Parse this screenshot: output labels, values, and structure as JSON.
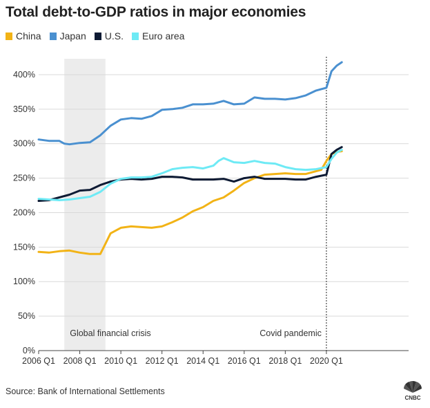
{
  "title": "Total debt-to-GDP ratios in major economies",
  "source": "Source: Bank of International Settlements",
  "logo_text": "CNBC",
  "chart_data": {
    "type": "line",
    "title": "Total debt-to-GDP ratios in major economies",
    "xlabel": "",
    "ylabel": "",
    "xlim": [
      2006.0,
      2024.0
    ],
    "ylim": [
      0,
      420
    ],
    "y_ticks": [
      0,
      50,
      100,
      150,
      200,
      250,
      300,
      350,
      400
    ],
    "y_tick_labels": [
      "0%",
      "50%",
      "100%",
      "150%",
      "200%",
      "250%",
      "300%",
      "350%",
      "400%"
    ],
    "x_ticks": [
      2006,
      2008,
      2010,
      2012,
      2014,
      2016,
      2018,
      2020
    ],
    "x_tick_labels": [
      "2006 Q1",
      "2008 Q1",
      "2010 Q1",
      "2012 Q1",
      "2014 Q1",
      "2016 Q1",
      "2018 Q1",
      "2020 Q1"
    ],
    "grid": true,
    "legend_position": "top-left",
    "annotations": [
      {
        "type": "shaded",
        "label": "Global financial crisis",
        "x_start": 2007.25,
        "x_end": 2009.25
      },
      {
        "type": "vline",
        "label": "Covid pandemic",
        "x": 2020.0
      }
    ],
    "series": [
      {
        "name": "China",
        "color": "#f2b316",
        "x": [
          2006.0,
          2006.5,
          2007.0,
          2007.5,
          2008.0,
          2008.5,
          2009.0,
          2009.25,
          2009.5,
          2010.0,
          2010.5,
          2011.0,
          2011.5,
          2012.0,
          2012.5,
          2013.0,
          2013.5,
          2014.0,
          2014.5,
          2015.0,
          2015.5,
          2016.0,
          2016.5,
          2017.0,
          2017.5,
          2018.0,
          2018.5,
          2019.0,
          2019.5,
          2019.75,
          2020.0,
          2020.25,
          2020.5,
          2020.75
        ],
        "y": [
          143,
          142,
          144,
          145,
          142,
          140,
          140,
          155,
          170,
          178,
          180,
          179,
          178,
          180,
          186,
          193,
          202,
          208,
          217,
          222,
          232,
          243,
          250,
          255,
          256,
          257,
          256,
          256,
          260,
          262,
          275,
          285,
          288,
          289
        ]
      },
      {
        "name": "Japan",
        "color": "#4a90d0",
        "x": [
          2006.0,
          2006.5,
          2007.0,
          2007.25,
          2007.5,
          2008.0,
          2008.5,
          2009.0,
          2009.5,
          2010.0,
          2010.5,
          2011.0,
          2011.5,
          2012.0,
          2012.5,
          2013.0,
          2013.5,
          2014.0,
          2014.5,
          2015.0,
          2015.5,
          2016.0,
          2016.5,
          2017.0,
          2017.5,
          2018.0,
          2018.5,
          2019.0,
          2019.5,
          2020.0,
          2020.25,
          2020.5,
          2020.75
        ],
        "y": [
          306,
          304,
          304,
          300,
          299,
          301,
          302,
          312,
          326,
          335,
          337,
          336,
          340,
          349,
          350,
          352,
          357,
          357,
          358,
          362,
          357,
          358,
          367,
          365,
          365,
          364,
          366,
          370,
          377,
          381,
          405,
          413,
          418
        ]
      },
      {
        "name": "U.S.",
        "color": "#0d1a33",
        "x": [
          2006.0,
          2006.5,
          2007.0,
          2007.5,
          2008.0,
          2008.5,
          2009.0,
          2009.5,
          2010.0,
          2010.5,
          2011.0,
          2011.5,
          2012.0,
          2012.5,
          2013.0,
          2013.5,
          2014.0,
          2014.5,
          2015.0,
          2015.5,
          2016.0,
          2016.5,
          2017.0,
          2017.5,
          2018.0,
          2018.5,
          2019.0,
          2019.5,
          2020.0,
          2020.25,
          2020.5,
          2020.75
        ],
        "y": [
          217,
          218,
          222,
          226,
          232,
          233,
          240,
          245,
          248,
          249,
          248,
          249,
          252,
          252,
          251,
          248,
          248,
          248,
          249,
          245,
          250,
          252,
          249,
          249,
          249,
          248,
          248,
          252,
          255,
          285,
          291,
          295
        ]
      },
      {
        "name": "Euro area",
        "color": "#6eeaf5",
        "x": [
          2006.0,
          2006.5,
          2007.0,
          2007.5,
          2008.0,
          2008.5,
          2009.0,
          2009.5,
          2010.0,
          2010.5,
          2011.0,
          2011.5,
          2012.0,
          2012.5,
          2013.0,
          2013.5,
          2014.0,
          2014.5,
          2014.75,
          2015.0,
          2015.5,
          2016.0,
          2016.5,
          2017.0,
          2017.5,
          2018.0,
          2018.5,
          2019.0,
          2019.5,
          2020.0,
          2020.25,
          2020.5,
          2020.75
        ],
        "y": [
          220,
          219,
          218,
          219,
          221,
          223,
          230,
          242,
          249,
          251,
          251,
          252,
          257,
          263,
          265,
          266,
          264,
          268,
          275,
          279,
          273,
          272,
          275,
          272,
          271,
          266,
          263,
          262,
          263,
          266,
          278,
          287,
          291
        ]
      }
    ]
  }
}
